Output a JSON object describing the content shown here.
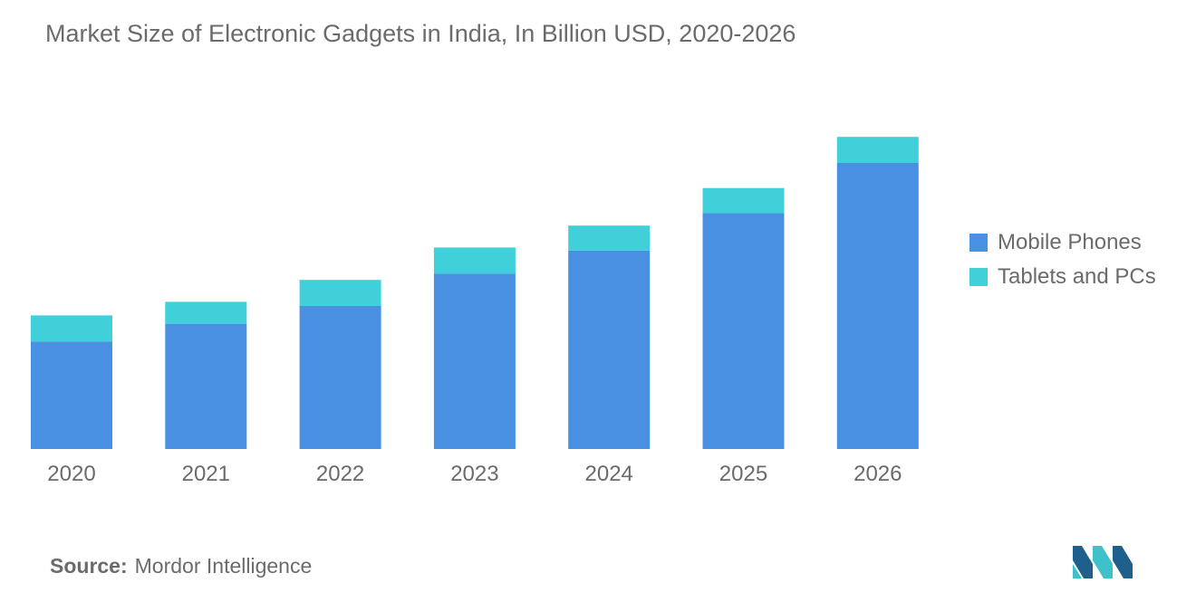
{
  "title": "Market Size of Electronic Gadgets in India, In Billion USD, 2020-2026",
  "source": {
    "label": "Source:",
    "text": "Mordor Intelligence"
  },
  "colors": {
    "Mobile Phones": "#4a90e2",
    "Tablets and PCs": "#3fd0d9",
    "text": "#6b6b6b",
    "logo_dark": "#1f5f8b",
    "logo_light": "#3fc1c9"
  },
  "logo_icon": "mordor-intelligence-logo-icon",
  "chart_data": {
    "type": "bar",
    "stacked": true,
    "categories": [
      "2020",
      "2021",
      "2022",
      "2023",
      "2024",
      "2025",
      "2026"
    ],
    "series": [
      {
        "name": "Mobile Phones",
        "values": [
          10.3,
          12.0,
          13.7,
          16.8,
          19.0,
          22.6,
          27.4
        ]
      },
      {
        "name": "Tablets and PCs",
        "values": [
          2.5,
          2.1,
          2.5,
          2.5,
          2.4,
          2.4,
          2.5
        ]
      }
    ],
    "ylim": [
      0,
      30
    ],
    "grid": false,
    "legend_position": "right"
  }
}
